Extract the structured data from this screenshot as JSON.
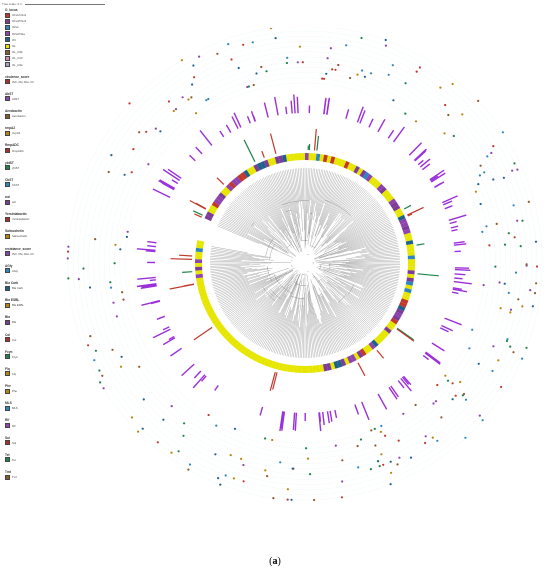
{
  "scale_label": "Tree scale: 0.1",
  "caption": {
    "open": "(",
    "label": "a",
    "close": ")"
  },
  "legend": [
    {
      "title": "O_locus",
      "items": [
        {
          "label": "O1v1/O1v2",
          "color": "#c0392b"
        },
        {
          "label": "O1v3/O1v4",
          "color": "#7d3c98"
        },
        {
          "label": "O2v1",
          "color": "#2e86c1"
        },
        {
          "label": "O2v2/O2a",
          "color": "#8e44ad"
        },
        {
          "label": "O3",
          "color": "#1f618d"
        },
        {
          "label": "OL",
          "color": "#e6e600"
        },
        {
          "label": "OL_O3b",
          "color": "#8b5a2b"
        },
        {
          "label": "OL_O13",
          "color": "#d98cb3"
        },
        {
          "label": "OL_O4a",
          "color": "#b0a0c8"
        }
      ]
    },
    {
      "title": "virulence_score",
      "items": [
        {
          "label": "0Vir, 0Si, Aba, Ch",
          "color": "#a93226"
        }
      ]
    },
    {
      "title": "AbST",
      "items": [
        {
          "label": "AbST",
          "color": "#8e44ad"
        }
      ]
    },
    {
      "title": "Aerobactin",
      "items": [
        {
          "label": "Aerobactin",
          "color": "#8b5a2b"
        }
      ]
    },
    {
      "title": "rmpA2",
      "items": [
        {
          "label": "rmpA2",
          "color": "#b8860b"
        }
      ]
    },
    {
      "title": "RmpADC",
      "items": [
        {
          "label": "RmpADC",
          "color": "#a93226"
        }
      ]
    },
    {
      "title": "ybtST",
      "items": [
        {
          "label": "ybtST",
          "color": "#1e8449"
        }
      ]
    },
    {
      "title": "CbST",
      "items": [
        {
          "label": "CbST",
          "color": "#2e86c1"
        }
      ]
    },
    {
      "title": "wzi",
      "items": [
        {
          "label": "wzi",
          "color": "#7d3c98"
        }
      ]
    },
    {
      "title": "Yersiniabactin",
      "items": [
        {
          "label": "Yersiniabactin",
          "color": "#a93226"
        }
      ]
    },
    {
      "title": "Salmochelin",
      "items": [
        {
          "label": "Salmochelin",
          "color": "#b8860b"
        }
      ]
    },
    {
      "title": "resistance_score",
      "items": [
        {
          "label": "0Vir, 0Si, Aba, Ch",
          "color": "#8e44ad"
        }
      ]
    },
    {
      "title": "AGly",
      "items": [
        {
          "label": "AGly",
          "color": "#2e86c1"
        }
      ]
    },
    {
      "title": "Bla Carb",
      "items": [
        {
          "label": "Bla Carb",
          "color": "#1f618d"
        }
      ]
    },
    {
      "title": "Bla ESBL",
      "items": [
        {
          "label": "Bla ESBL",
          "color": "#b8860b"
        }
      ]
    },
    {
      "title": "Bla",
      "items": [
        {
          "label": "Bla",
          "color": "#7d3c98"
        }
      ]
    },
    {
      "title": "Col",
      "items": [
        {
          "label": "Col",
          "color": "#a93226"
        }
      ]
    },
    {
      "title": "Fcyn",
      "items": [
        {
          "label": "Fcyn",
          "color": "#1e8449"
        }
      ]
    },
    {
      "title": "Flq",
      "items": [
        {
          "label": "Flq",
          "color": "#b8860b"
        }
      ]
    },
    {
      "title": "Phe",
      "items": [
        {
          "label": "Phe",
          "color": "#b8860b"
        }
      ]
    },
    {
      "title": "MLS",
      "items": [
        {
          "label": "MLS",
          "color": "#2e86c1"
        }
      ]
    },
    {
      "title": "Rif",
      "items": [
        {
          "label": "Rif",
          "color": "#8e44ad"
        }
      ]
    },
    {
      "title": "Sul",
      "items": [
        {
          "label": "Sul",
          "color": "#a93226"
        }
      ]
    },
    {
      "title": "Tet",
      "items": [
        {
          "label": "Tet",
          "color": "#1e8449"
        }
      ]
    },
    {
      "title": "Tmt",
      "items": [
        {
          "label": "Tmt",
          "color": "#8b5a2b"
        }
      ]
    }
  ]
}
